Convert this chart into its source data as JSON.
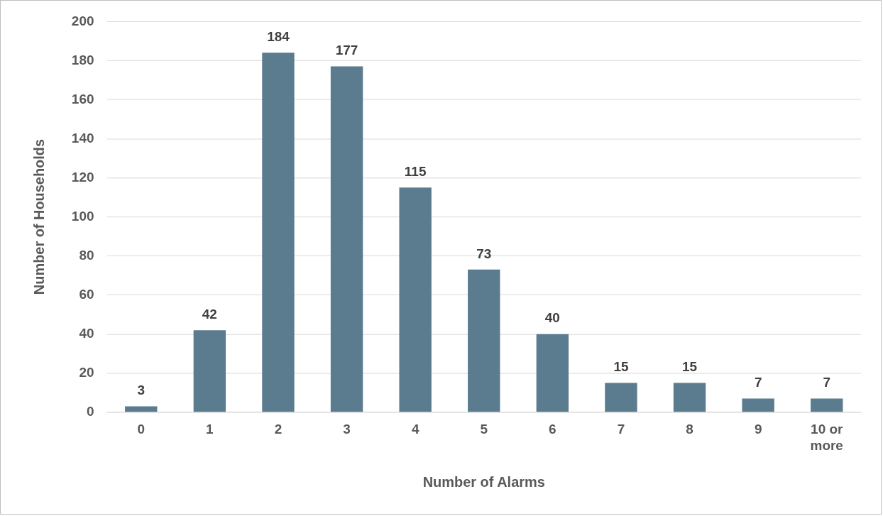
{
  "chart_data": {
    "type": "bar",
    "xlabel": "Number of Alarms",
    "ylabel": "Number of Households",
    "categories": [
      "0",
      "1",
      "2",
      "3",
      "4",
      "5",
      "6",
      "7",
      "8",
      "9",
      "10 or more"
    ],
    "values": [
      3,
      42,
      184,
      177,
      115,
      73,
      40,
      15,
      15,
      7,
      7
    ],
    "color": "#5b7c8f",
    "ylim": [
      0,
      200
    ],
    "yticks": [
      0,
      20,
      40,
      60,
      80,
      100,
      120,
      140,
      160,
      180,
      200
    ],
    "grid": "y",
    "data_labels": true,
    "legend": false
  }
}
